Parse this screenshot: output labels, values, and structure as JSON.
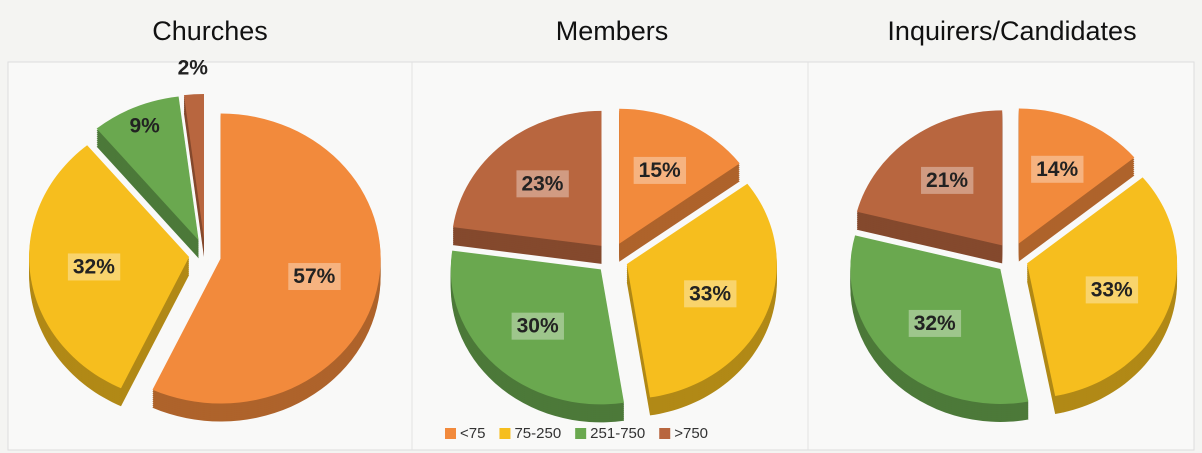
{
  "chart_data": [
    {
      "type": "pie",
      "title": "Churches",
      "values": [
        57,
        32,
        9,
        2
      ],
      "value_labels": [
        "57%",
        "32%",
        "9%",
        "2%"
      ]
    },
    {
      "type": "pie",
      "title": "Members",
      "values": [
        15,
        33,
        30,
        23
      ],
      "value_labels": [
        "15%",
        "33%",
        "30%",
        "23%"
      ]
    },
    {
      "type": "pie",
      "title": "Inquirers/Candidates",
      "values": [
        14,
        33,
        32,
        21
      ],
      "value_labels": [
        "14%",
        "33%",
        "32%",
        "21%"
      ]
    }
  ],
  "legend": {
    "categories": [
      "<75",
      "75-250",
      "251-750",
      ">750"
    ],
    "colors": [
      "#f28a3c",
      "#f6be1e",
      "#6aa84f",
      "#b8663f"
    ]
  }
}
